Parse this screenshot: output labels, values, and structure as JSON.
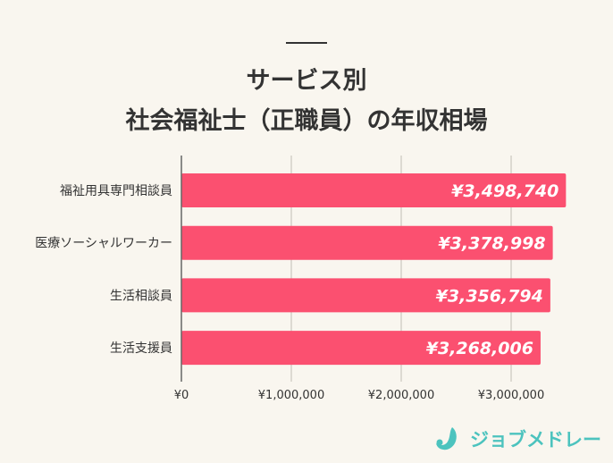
{
  "chart_data": {
    "type": "bar",
    "orientation": "horizontal",
    "title": [
      "サービス別",
      "社会福祉士（正職員）の年収相場"
    ],
    "categories": [
      "福祉用具専門相談員",
      "医療ソーシャルワーカー",
      "生活相談員",
      "生活支援員"
    ],
    "values": [
      3498740,
      3378998,
      3356794,
      3268006
    ],
    "data_labels": [
      "¥3,498,740",
      "¥3,378,998",
      "¥3,356,794",
      "¥3,268,006"
    ],
    "x_ticks": [
      0,
      1000000,
      2000000,
      3000000
    ],
    "x_tick_labels": [
      "¥0",
      "¥1,000,000",
      "¥2,000,000",
      "¥3,000,000"
    ],
    "xlim": [
      0,
      3500000
    ],
    "grid": "vertical",
    "bar_color": "#fb5070",
    "grid_color": "#d4d0c8"
  },
  "logo": {
    "text": "ジョブメドレー",
    "color": "#4cc3be"
  }
}
